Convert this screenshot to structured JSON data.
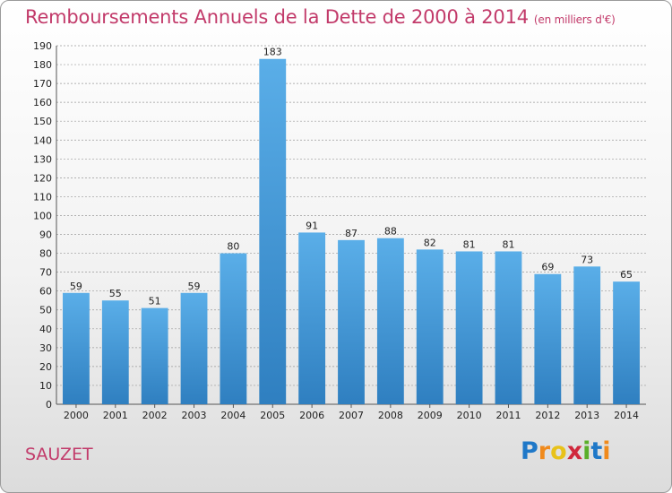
{
  "title": "Remboursements Annuels de la Dette de 2000 à 2014",
  "subtitle": "(en milliers d'€)",
  "commune": "SAUZET",
  "logo": {
    "letters": [
      "P",
      "r",
      "o",
      "x",
      "i",
      "t",
      "i"
    ]
  },
  "colors": {
    "title": "#c23a6a",
    "bar_top": "#5aaee8",
    "bar_bottom": "#2f7fc0",
    "grid": "#9a9a9a"
  },
  "chart_data": {
    "type": "bar",
    "title": "Remboursements Annuels de la Dette de 2000 à 2014",
    "subtitle": "(en milliers d'€)",
    "categories": [
      "2000",
      "2001",
      "2002",
      "2003",
      "2004",
      "2005",
      "2006",
      "2007",
      "2008",
      "2009",
      "2010",
      "2011",
      "2012",
      "2013",
      "2014"
    ],
    "values": [
      59,
      55,
      51,
      59,
      80,
      183,
      91,
      87,
      88,
      82,
      81,
      81,
      69,
      73,
      65
    ],
    "ylim": [
      0,
      190
    ],
    "yticks": [
      0,
      10,
      20,
      30,
      40,
      50,
      60,
      70,
      80,
      90,
      100,
      110,
      120,
      130,
      140,
      150,
      160,
      170,
      180,
      190
    ],
    "grid": true,
    "xlabel": "",
    "ylabel": ""
  }
}
